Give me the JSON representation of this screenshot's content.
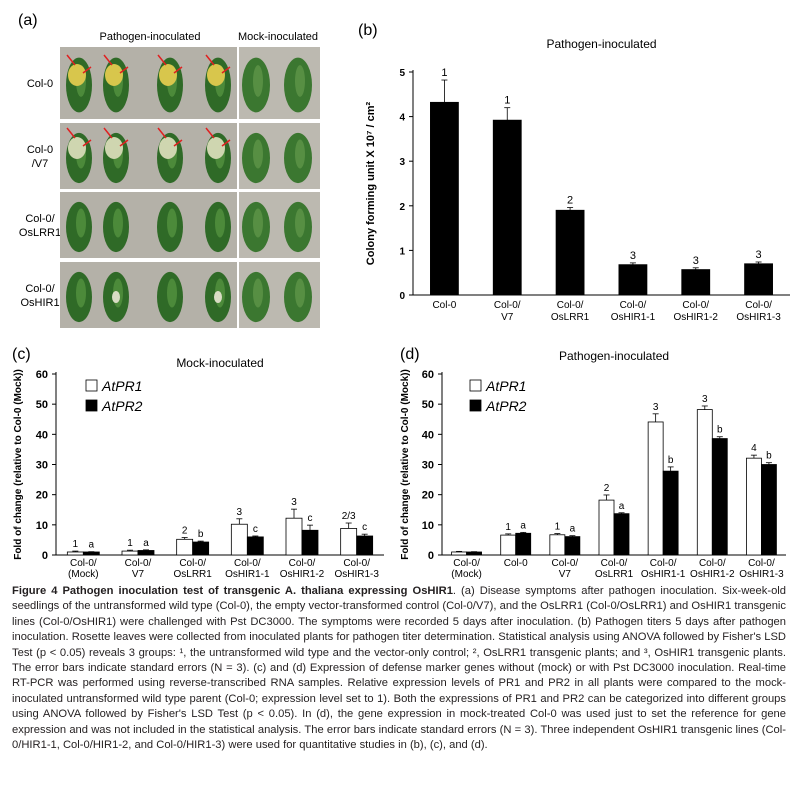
{
  "figure": {
    "panel_labels": {
      "a": "(a)",
      "b": "(b)",
      "c": "(c)",
      "d": "(d)"
    },
    "photo": {
      "header_pathogen": "Pathogen-inoculated",
      "header_mock": "Mock-inoculated",
      "rows": [
        "Col-0",
        "Col-0\n/V7",
        "Col-0/\nOsLRR1",
        "Col-0/\nOsHIR1"
      ]
    }
  },
  "chart_data": [
    {
      "id": "b",
      "type": "bar",
      "title": "Pathogen-inoculated",
      "ylabel": "Colony forming unit X 10⁷ / cm²",
      "xlabel": "",
      "ylim": [
        0,
        5
      ],
      "yticks": [
        0,
        1,
        2,
        3,
        4,
        5
      ],
      "categories": [
        "Col-0",
        "Col-0/\nV7",
        "Col-0/\nOsLRR1",
        "Col-0/\nOsHIR1-1",
        "Col-0/\nOsHIR1-2",
        "Col-0/\nOsHIR1-3"
      ],
      "values": [
        4.32,
        3.92,
        1.9,
        0.68,
        0.57,
        0.7
      ],
      "errors": [
        0.5,
        0.28,
        0.06,
        0.04,
        0.04,
        0.04
      ],
      "labels": [
        "1",
        "1",
        "2",
        "3",
        "3",
        "3"
      ]
    },
    {
      "id": "c",
      "type": "bar",
      "title": "Mock-inoculated",
      "ylabel": "Fold of change (relative to Col-0 (Mock))",
      "xlabel": "",
      "ylim": [
        0,
        60
      ],
      "yticks": [
        0,
        10,
        20,
        30,
        40,
        50,
        60
      ],
      "legend_position": "top-left",
      "categories": [
        "Col-0/\n(Mock)",
        "Col-0/\nV7",
        "Col-0/\nOsLRR1",
        "Col-0/\nOsHIR1-1",
        "Col-0/\nOsHIR1-2",
        "Col-0/\nOsHIR1-3"
      ],
      "series": [
        {
          "name": "AtPR1",
          "fill": "#ffffff",
          "values": [
            1,
            1.3,
            5.2,
            10.2,
            12.2,
            8.8
          ],
          "errors": [
            0.3,
            0.3,
            0.6,
            1.8,
            3.0,
            1.8
          ],
          "labels": [
            "1",
            "1",
            "2",
            "3",
            "3",
            "2/3"
          ]
        },
        {
          "name": "AtPR2",
          "fill": "#000000",
          "values": [
            1,
            1.5,
            4.3,
            6.0,
            8.2,
            6.3
          ],
          "errors": [
            0.1,
            0.2,
            0.3,
            0.3,
            1.7,
            0.6
          ],
          "labels": [
            "a",
            "a",
            "b",
            "c",
            "c",
            "c"
          ]
        }
      ]
    },
    {
      "id": "d",
      "type": "bar",
      "title": "Pathogen-inoculated",
      "ylabel": "Fold of change (relative to Col-0 (Mock))",
      "xlabel": "",
      "ylim": [
        0,
        60
      ],
      "yticks": [
        0,
        10,
        20,
        30,
        40,
        50,
        60
      ],
      "legend_position": "top-left",
      "categories": [
        "Col-0/\n(Mock)",
        "Col-0",
        "Col-0/\nV7",
        "Col-0/\nOsLRR1",
        "Col-0/\nOsHIR1-1",
        "Col-0/\nOsHIR1-2",
        "Col-0/\nOsHIR1-3"
      ],
      "series": [
        {
          "name": "AtPR1",
          "fill": "#ffffff",
          "values": [
            1,
            6.6,
            6.7,
            18.2,
            44.1,
            48.2,
            32.1
          ],
          "errors": [
            0.2,
            0.4,
            0.4,
            1.7,
            2.7,
            1.2,
            1.0
          ],
          "labels": [
            "",
            "1",
            "1",
            "2",
            "3",
            "3",
            "4"
          ]
        },
        {
          "name": "AtPR2",
          "fill": "#000000",
          "values": [
            1,
            7.2,
            6.1,
            13.7,
            27.8,
            38.6,
            30.0
          ],
          "errors": [
            0.1,
            0.3,
            0.3,
            0.3,
            1.4,
            0.6,
            0.6
          ],
          "labels": [
            "",
            "a",
            "a",
            "a",
            "b",
            "b",
            "b"
          ]
        }
      ]
    }
  ],
  "caption": {
    "title": "Figure 4 Pathogen inoculation test of transgenic A. thaliana expressing OsHIR1",
    "body": ". (a) Disease symptoms after pathogen inoculation. Six-week-old seedlings of the untransformed wild type (Col-0), the empty vector-transformed control (Col-0/V7), and the OsLRR1 (Col-0/OsLRR1) and OsHIR1 transgenic lines (Col-0/OsHIR1) were challenged with Pst DC3000. The symptoms were recorded 5 days after inoculation. (b) Pathogen titers 5 days after pathogen inoculation. Rosette leaves were collected from inoculated plants for pathogen titer determination. Statistical analysis using ANOVA followed by Fisher's LSD Test (p < 0.05) reveals 3 groups: ¹, the untransformed wild type and the vector-only control; ², OsLRR1 transgenic plants; and ³, OsHIR1 transgenic plants. The error bars indicate standard errors (N = 3). (c) and (d) Expression of defense marker genes without (mock) or with Pst DC3000 inoculation. Real-time RT-PCR was performed using reverse-transcribed RNA samples. Relative expression levels of PR1 and PR2 in all plants were compared to the mock-inoculated untransformed wild type parent (Col-0; expression level set to 1). Both the expressions of PR1 and PR2 can be categorized into different groups using ANOVA followed by Fisher's LSD Test (p < 0.05). In (d), the gene expression in mock-treated Col-0 was used just to set the reference for gene expression and was not included in the statistical analysis. The error bars indicate standard errors (N = 3). Three independent OsHIR1 transgenic lines (Col-0/HIR1-1, Col-0/HIR1-2, and Col-0/HIR1-3) were used for quantitative studies in (b), (c), and (d)."
  }
}
